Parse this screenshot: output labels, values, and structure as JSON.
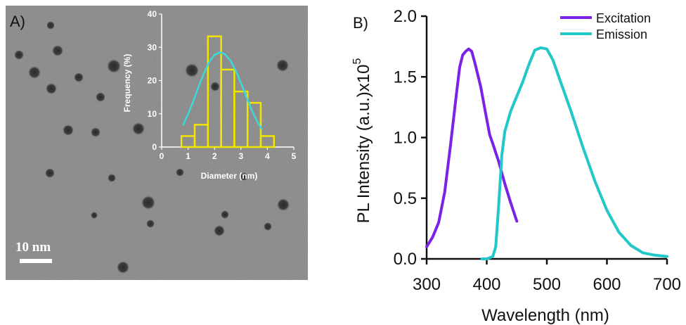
{
  "panel_a": {
    "label": "A)",
    "scale_bar": "10 nm",
    "inset_ylabel": "Frequency (%)",
    "inset_xlabel": "Diameter (nm)"
  },
  "panel_b": {
    "label": "B)",
    "ylabel_main": "PL Intensity (a.u.)x10",
    "ylabel_exp": "5",
    "xlabel": "Wavelength (nm)"
  },
  "colors": {
    "excitation": "#7a22e6",
    "emission": "#22c7c7",
    "histogram": "#f2e600",
    "fit": "#3fd8d8"
  },
  "chart_data": [
    {
      "type": "bar",
      "panel": "A inset",
      "xlabel": "Diameter (nm)",
      "ylabel": "Frequency (%)",
      "xlim": [
        0,
        5
      ],
      "ylim": [
        0,
        40
      ],
      "x_ticks": [
        "0",
        "1",
        "2",
        "3",
        "4",
        "5"
      ],
      "y_ticks": [
        "0",
        "10",
        "20",
        "30",
        "40"
      ],
      "bin_width": 0.5,
      "bin_centers": [
        1.0,
        1.5,
        2.0,
        2.5,
        3.0,
        3.5,
        4.0
      ],
      "values": [
        3.3,
        6.7,
        33.3,
        23.3,
        16.7,
        13.3,
        3.3
      ],
      "fit": {
        "type": "gaussian",
        "x": [
          0.8,
          1.0,
          1.2,
          1.4,
          1.6,
          1.8,
          2.0,
          2.2,
          2.4,
          2.6,
          2.8,
          3.0,
          3.2,
          3.4,
          3.6,
          3.8
        ],
        "y": [
          6.5,
          9.9,
          13.9,
          18.2,
          22.2,
          25.6,
          27.7,
          28.5,
          27.9,
          26.0,
          23.0,
          19.3,
          15.2,
          11.3,
          7.9,
          5.2
        ]
      }
    },
    {
      "type": "line",
      "panel": "B",
      "xlabel": "Wavelength (nm)",
      "ylabel": "PL Intensity (a.u.)x10^5",
      "xlim": [
        300,
        700
      ],
      "ylim": [
        0,
        2.0
      ],
      "x_ticks": [
        "300",
        "400",
        "500",
        "600",
        "700"
      ],
      "y_ticks": [
        "0.0",
        "0.5",
        "1.0",
        "1.5",
        "2.0"
      ],
      "legend_position": "top-right",
      "series": [
        {
          "name": "Excitation",
          "color": "#7a22e6",
          "x": [
            300,
            310,
            320,
            330,
            340,
            350,
            355,
            360,
            365,
            370,
            375,
            380,
            390,
            400,
            405,
            410,
            420,
            430,
            440,
            450
          ],
          "y": [
            0.1,
            0.18,
            0.3,
            0.55,
            0.95,
            1.38,
            1.58,
            1.68,
            1.71,
            1.73,
            1.71,
            1.62,
            1.42,
            1.15,
            1.02,
            0.95,
            0.8,
            0.62,
            0.46,
            0.31
          ]
        },
        {
          "name": "Emission",
          "color": "#22c7c7",
          "x": [
            392,
            400,
            410,
            415,
            420,
            425,
            430,
            440,
            450,
            460,
            470,
            480,
            490,
            500,
            510,
            520,
            540,
            560,
            580,
            600,
            620,
            640,
            660,
            680,
            700
          ],
          "y": [
            0.0,
            0.0,
            0.02,
            0.1,
            0.45,
            0.85,
            1.05,
            1.22,
            1.34,
            1.46,
            1.6,
            1.72,
            1.74,
            1.73,
            1.64,
            1.5,
            1.22,
            0.92,
            0.64,
            0.4,
            0.22,
            0.11,
            0.05,
            0.03,
            0.02
          ]
        }
      ]
    }
  ]
}
